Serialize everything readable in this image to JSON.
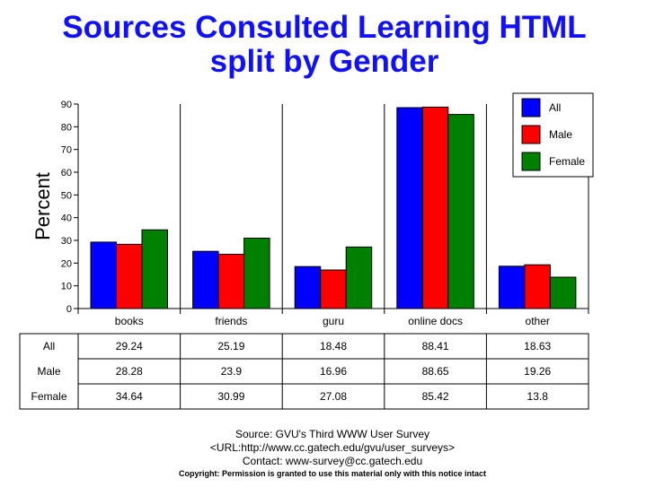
{
  "chart_data": {
    "type": "bar",
    "title": "Sources Consulted Learning HTML split by Gender",
    "title_lines": [
      "Sources Consulted Learning HTML",
      "split by Gender"
    ],
    "ylabel": "Percent",
    "xlabel": "",
    "ylim": [
      0,
      90
    ],
    "yticks": [
      0,
      10,
      20,
      30,
      40,
      50,
      60,
      70,
      80,
      90
    ],
    "grid": "vertical separators between categories",
    "legend_position": "top-right",
    "categories": [
      "books",
      "friends",
      "guru",
      "online docs",
      "other"
    ],
    "series": [
      {
        "name": "All",
        "color": "#0000ff",
        "values": [
          29.24,
          25.19,
          18.48,
          88.41,
          18.63
        ]
      },
      {
        "name": "Male",
        "color": "#ff0000",
        "values": [
          28.28,
          23.9,
          16.96,
          88.65,
          19.26
        ]
      },
      {
        "name": "Female",
        "color": "#008000",
        "values": [
          34.64,
          30.99,
          27.08,
          85.42,
          13.8
        ]
      }
    ],
    "table": {
      "rows": [
        {
          "label": "All",
          "values": [
            "29.24",
            "25.19",
            "18.48",
            "88.41",
            "18.63"
          ]
        },
        {
          "label": "Male",
          "values": [
            "28.28",
            "23.9",
            "16.96",
            "88.65",
            "19.26"
          ]
        },
        {
          "label": "Female",
          "values": [
            "34.64",
            "30.99",
            "27.08",
            "85.42",
            "13.8"
          ]
        }
      ]
    }
  },
  "footer": {
    "source": "Source: GVU's Third WWW User Survey",
    "url": "<URL:http://www.cc.gatech.edu/gvu/user_surveys>",
    "contact": "Contact: www-survey@cc.gatech.edu",
    "copyright": "Copyright: Permission is granted to use this material only with this notice intact"
  }
}
